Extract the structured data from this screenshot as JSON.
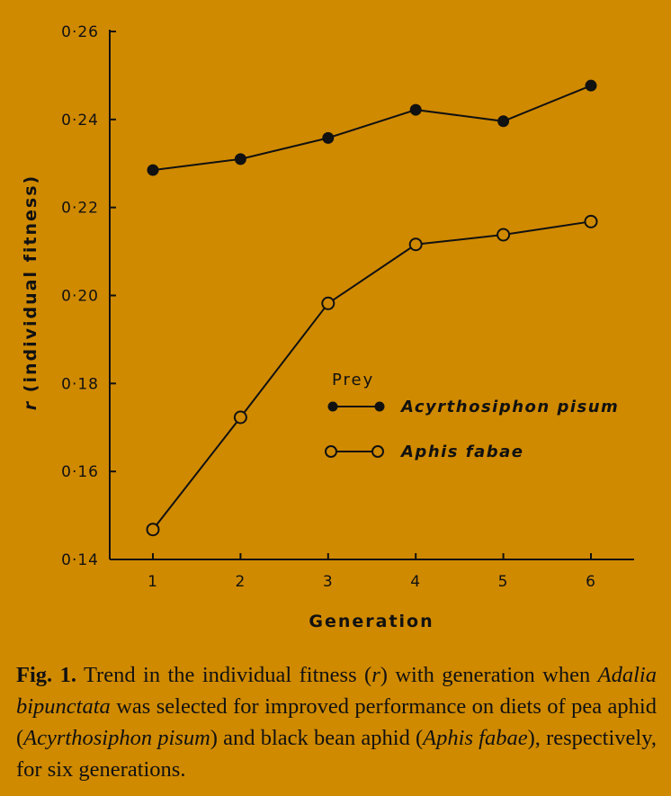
{
  "chart_data": {
    "type": "line",
    "x": [
      1,
      2,
      3,
      4,
      5,
      6
    ],
    "x_ticks": [
      "1",
      "2",
      "3",
      "4",
      "5",
      "6"
    ],
    "y_ticks": [
      "0·14",
      "0·16",
      "0·18",
      "0·20",
      "0·22",
      "0·24",
      "0·26"
    ],
    "xlabel": "Generation",
    "ylabel_symbol": "r",
    "ylabel_rest": " (individual fitness)",
    "ylim": [
      0.14,
      0.26
    ],
    "xlim": [
      0.5,
      6.5
    ],
    "grid": false,
    "legend_title": "Prey",
    "legend_placement": "center-right",
    "series": [
      {
        "name": "Acyrthosiphon pisum",
        "marker": "filled-circle",
        "values": [
          0.2285,
          0.231,
          0.2358,
          0.2422,
          0.2396,
          0.2477
        ]
      },
      {
        "name": "Aphis fabae",
        "marker": "open-circle",
        "values": [
          0.1468,
          0.1723,
          0.1982,
          0.2116,
          0.2138,
          0.2168
        ]
      }
    ]
  },
  "caption": {
    "fig_label": "Fig. 1.",
    "parts": [
      " Trend in the individual fitness (",
      "r",
      ") with generation when ",
      "Adalia bipunctata",
      " was selected for improved performance on diets of pea aphid (",
      "Acyrthosiphon pisum",
      ") and black bean aphid (",
      "Aphis fabae",
      "), respectively, for six generations."
    ]
  },
  "colors": {
    "background": "#d08a00",
    "ink": "#111111"
  }
}
